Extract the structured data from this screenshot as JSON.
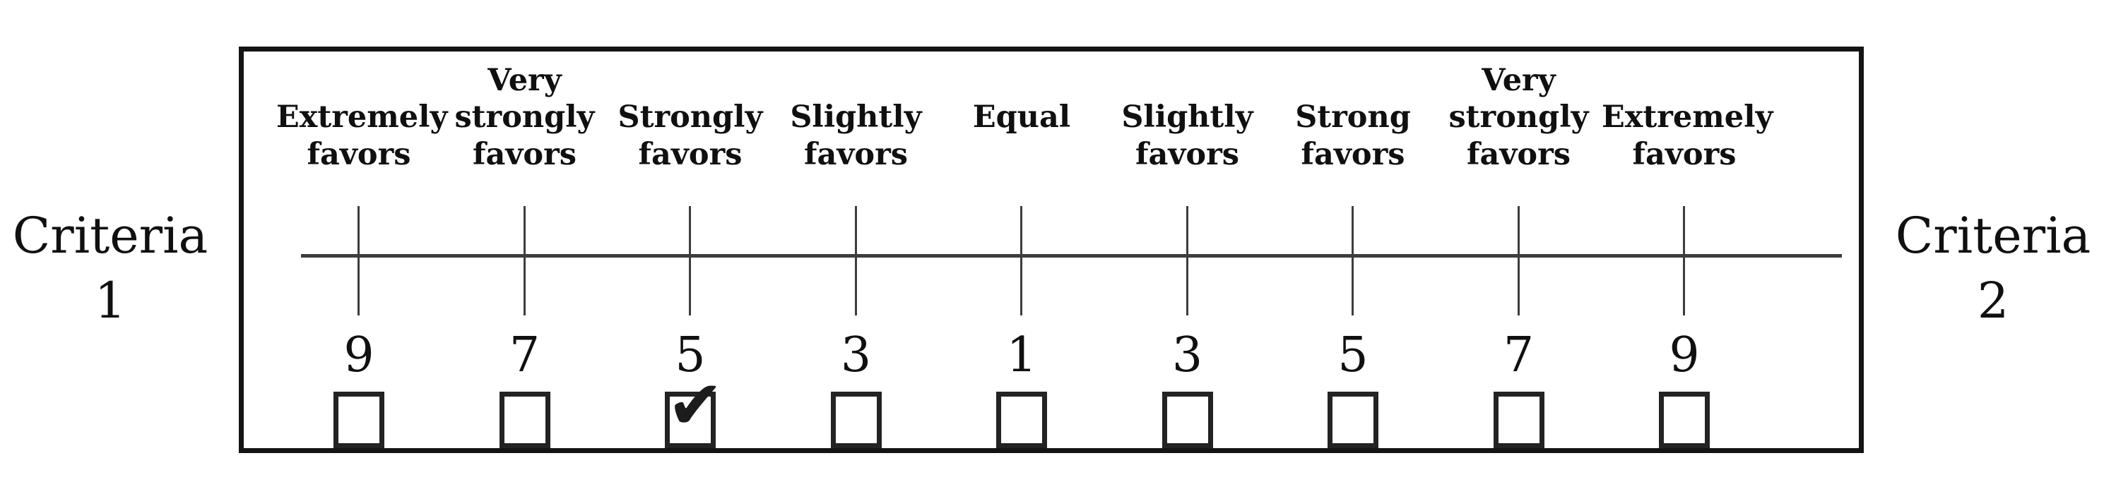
{
  "diagram": {
    "left_criteria": {
      "line1": "Criteria",
      "line2": "1"
    },
    "right_criteria": {
      "line1": "Criteria",
      "line2": "2"
    },
    "scale_items": [
      {
        "label": "Extremely favors",
        "lines": [
          "",
          "Extremely",
          "favors"
        ],
        "value": "9",
        "checked": false
      },
      {
        "label": "Very strongly favors",
        "lines": [
          "Very",
          "strongly",
          "favors"
        ],
        "value": "7",
        "checked": false
      },
      {
        "label": "Strongly favors",
        "lines": [
          "",
          "Strongly",
          "favors"
        ],
        "value": "5",
        "checked": true
      },
      {
        "label": "Slightly favors",
        "lines": [
          "",
          "Slightly",
          "favors"
        ],
        "value": "3",
        "checked": false
      },
      {
        "label": "Equal",
        "lines": [
          "",
          "Equal",
          ""
        ],
        "value": "1",
        "checked": false
      },
      {
        "label": "Slightly favors",
        "lines": [
          "",
          "Slightly",
          "favors"
        ],
        "value": "3",
        "checked": false
      },
      {
        "label": "Strong favors",
        "lines": [
          "",
          "Strong",
          "favors"
        ],
        "value": "5",
        "checked": false
      },
      {
        "label": "Very strongly favors",
        "lines": [
          "Very",
          "strongly",
          "favors"
        ],
        "value": "7",
        "checked": false
      },
      {
        "label": "Extremely favors",
        "lines": [
          "",
          "Extremely",
          "favors"
        ],
        "value": "9",
        "checked": false
      }
    ],
    "checkmark_icon": "✔",
    "colors": {
      "ink": "#101010",
      "line": "#3d3d3d",
      "background": "#ffffff"
    }
  }
}
